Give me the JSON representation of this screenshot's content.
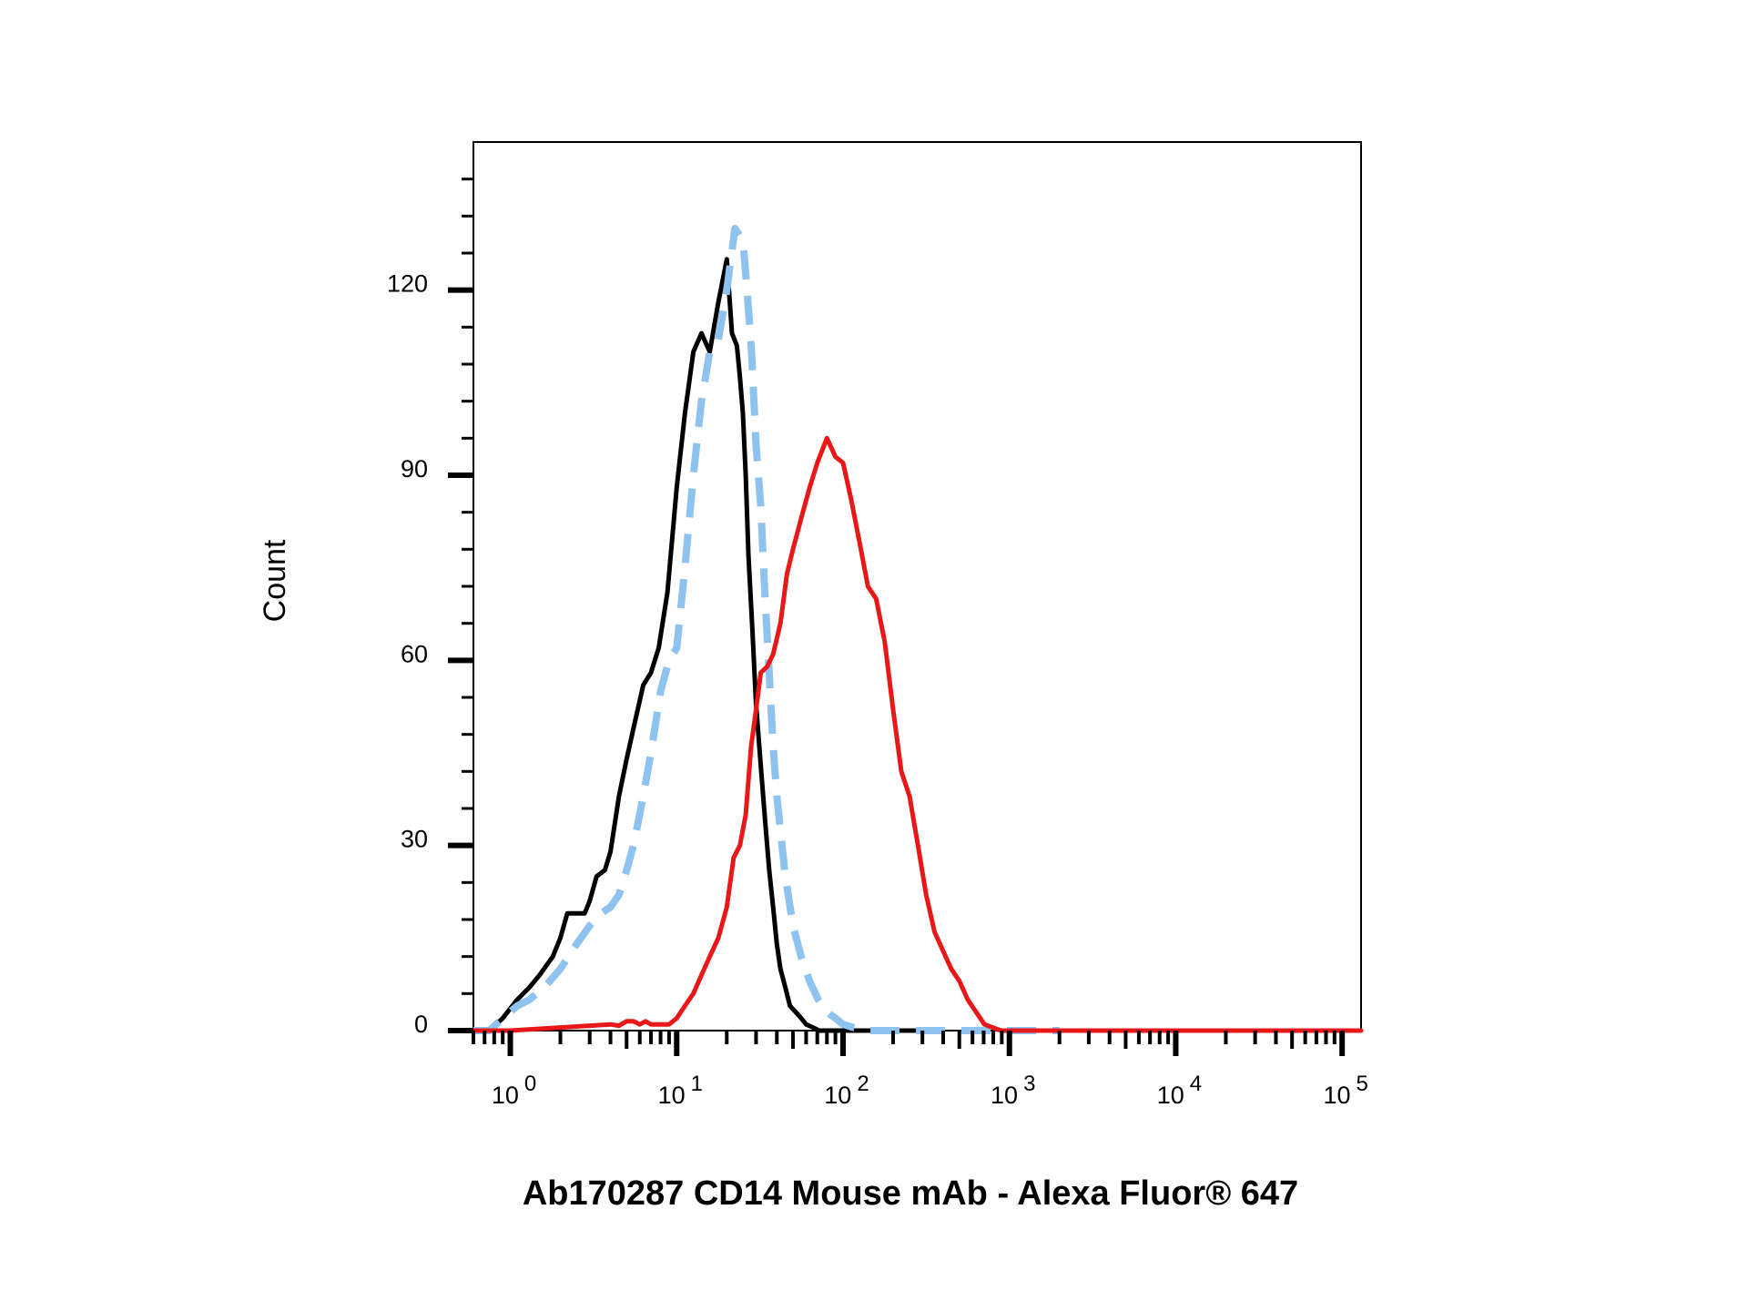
{
  "chart_data": {
    "type": "line",
    "title": "",
    "xlabel": "Ab170287 CD14 Mouse mAb - Alexa Fluor® 647",
    "ylabel": "Count",
    "x_scale": "log",
    "xlim": [
      0.6,
      130000
    ],
    "ylim": [
      0,
      144
    ],
    "y_ticks": [
      {
        "value": 0,
        "label": "0"
      },
      {
        "value": 30,
        "label": "30"
      },
      {
        "value": 60,
        "label": "60"
      },
      {
        "value": 90,
        "label": "90"
      },
      {
        "value": 120,
        "label": "120"
      }
    ],
    "x_ticks": [
      {
        "value": 1,
        "base": "10",
        "exp": "0"
      },
      {
        "value": 10,
        "base": "10",
        "exp": "1"
      },
      {
        "value": 100,
        "base": "10",
        "exp": "2"
      },
      {
        "value": 1000,
        "base": "10",
        "exp": "3"
      },
      {
        "value": 10000,
        "base": "10",
        "exp": "4"
      },
      {
        "value": 100000,
        "base": "10",
        "exp": "5"
      }
    ],
    "grid": false,
    "legend": "none",
    "series": [
      {
        "color": "#000000",
        "style": "solid",
        "x": [
          0.6,
          0.75,
          0.9,
          1.1,
          1.3,
          1.5,
          1.8,
          2.0,
          2.2,
          2.5,
          2.8,
          3.0,
          3.3,
          3.7,
          4.0,
          4.5,
          5.0,
          5.5,
          6.3,
          7.0,
          7.8,
          8.8,
          10.0,
          11.2,
          12.6,
          14.1,
          15.8,
          17.8,
          20.0,
          21.5,
          23.0,
          24.0,
          25.0,
          26.0,
          27.0,
          28.5,
          30.0,
          32.0,
          34.0,
          36.0,
          38.0,
          40.0,
          42.0,
          45.0,
          48.0,
          52.0,
          56.0,
          60.0,
          66.0,
          72.0,
          80.0,
          90.0,
          100.0,
          115.0,
          130.0,
          150.0,
          180.0,
          220.0,
          270.0
        ],
        "y": [
          0,
          0,
          2,
          5,
          7,
          9,
          12,
          15,
          19,
          19,
          19,
          21,
          25,
          26,
          29,
          38,
          44,
          49,
          56,
          58,
          62,
          71,
          88,
          100,
          110,
          113,
          110,
          118,
          125,
          113,
          111,
          106,
          100,
          90,
          77,
          65,
          53,
          43,
          34,
          26,
          20,
          14,
          10,
          7,
          4,
          3,
          2,
          1,
          0.5,
          0,
          0,
          0,
          0,
          0,
          0,
          0,
          0,
          0,
          0
        ]
      },
      {
        "color": "#8ec3f0",
        "style": "dashed",
        "x": [
          0.6,
          0.75,
          0.9,
          1.1,
          1.3,
          1.6,
          2.0,
          2.5,
          3.0,
          3.5,
          4.0,
          4.5,
          5.0,
          5.5,
          6.3,
          7.1,
          8.0,
          9.0,
          10.0,
          11.2,
          12.6,
          14.1,
          15.8,
          17.8,
          20.0,
          22.4,
          25.0,
          26.5,
          28.2,
          30.0,
          32.0,
          34.0,
          36.0,
          38.0,
          40.0,
          45.0,
          50.0,
          56.0,
          63.0,
          71.0,
          80.0,
          90.0,
          100.0,
          115.0,
          140.0,
          200.0,
          300.0,
          600.0,
          1000.0,
          2000.0
        ],
        "y": [
          0,
          0,
          2,
          4,
          5,
          7,
          10,
          14,
          17,
          19,
          20,
          22,
          26,
          30,
          38,
          46,
          55,
          60,
          62,
          75,
          90,
          102,
          110,
          112,
          120,
          130,
          128,
          120,
          110,
          95,
          85,
          70,
          58,
          46,
          38,
          25,
          17,
          12,
          8,
          5,
          3,
          2,
          1,
          0.5,
          0,
          0,
          0,
          0,
          0,
          0
        ]
      },
      {
        "color": "#e81818",
        "style": "solid",
        "x": [
          0.6,
          1.0,
          2.0,
          3.0,
          4.0,
          4.5,
          5.0,
          5.5,
          6.0,
          6.5,
          7.0,
          8.0,
          9.0,
          10.0,
          11.2,
          12.6,
          14.1,
          15.8,
          17.8,
          20.0,
          22.0,
          24.0,
          26.0,
          28.0,
          30.0,
          32.0,
          35.0,
          38.0,
          42.0,
          46.0,
          50.0,
          56.0,
          63.0,
          70.0,
          80.0,
          90.0,
          100.0,
          112.0,
          126.0,
          141.0,
          158.0,
          178.0,
          200.0,
          224.0,
          251.0,
          282.0,
          316.0,
          355.0,
          398.0,
          447.0,
          501.0,
          562.0,
          631.0,
          708.0,
          794.0,
          891.0,
          1000.0,
          1122.0,
          1259.0,
          1413.0,
          1585.0,
          1778.0,
          1995.0,
          2239.0,
          2512.0,
          3000.0,
          4000.0,
          6000.0,
          10000.0,
          30000.0,
          100000.0,
          130000.0
        ],
        "y": [
          0,
          0,
          0.5,
          0.8,
          1,
          0.8,
          1.5,
          1.5,
          1,
          1.5,
          1,
          1,
          1,
          2,
          4,
          6,
          9,
          12,
          15,
          20,
          28,
          30,
          35,
          46,
          52,
          58,
          59,
          61,
          66,
          74,
          78,
          83,
          88,
          92,
          96,
          93,
          92,
          86,
          79,
          72,
          70,
          63,
          52,
          42,
          38,
          30,
          22,
          16,
          13,
          10,
          8,
          5,
          3,
          1,
          0.5,
          0,
          0,
          0,
          0,
          0,
          0,
          0,
          0,
          0,
          0,
          0,
          0,
          0,
          0,
          0,
          0,
          0
        ]
      }
    ]
  }
}
